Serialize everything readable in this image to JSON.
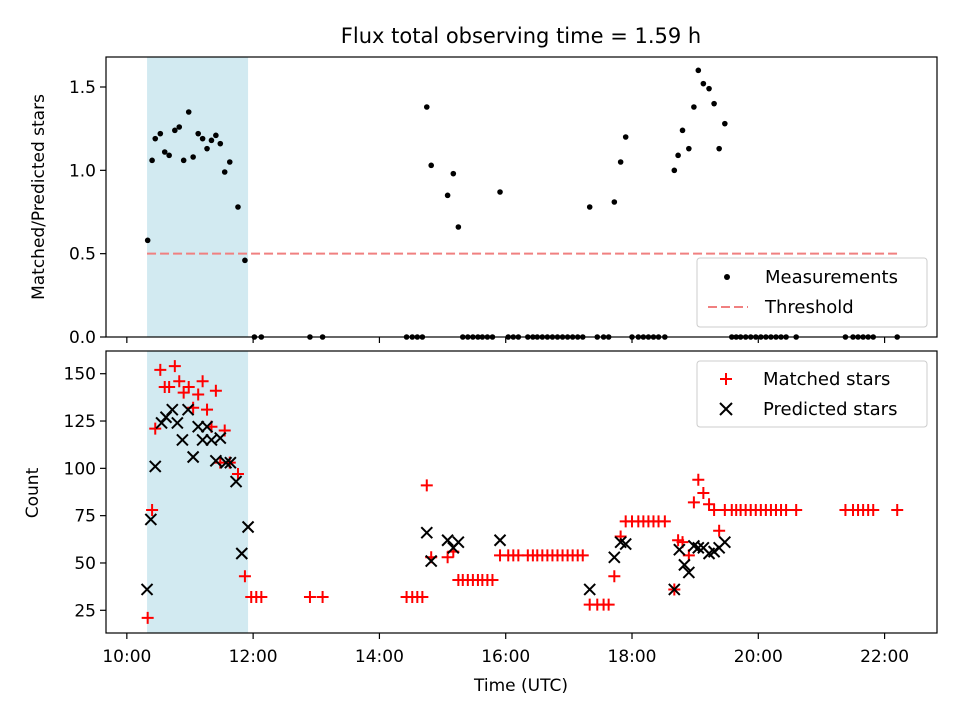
{
  "chart_data": [
    {
      "type": "scatter",
      "title": "Flux total observing time = 1.59 h",
      "xlabel": "",
      "ylabel": "Matched/Predicted stars",
      "xlim": [
        9.67,
        22.83
      ],
      "ylim": [
        0.0,
        1.68
      ],
      "xticks": [
        10,
        12,
        14,
        16,
        18,
        20,
        22
      ],
      "yticks": [
        0.0,
        0.5,
        1.0,
        1.5
      ],
      "ytick_labels": [
        "0.0",
        "0.5",
        "1.0",
        "1.5"
      ],
      "shaded_region": {
        "x": [
          10.32,
          11.92
        ],
        "color": "#add8e6"
      },
      "threshold": {
        "name": "Threshold",
        "y": 0.5,
        "x": [
          10.32,
          22.2
        ],
        "color": "#f08080"
      },
      "legend_position": "lower right",
      "series": [
        {
          "name": "Measurements",
          "color": "#000000",
          "points": [
            [
              10.33,
              0.58
            ],
            [
              10.4,
              1.06
            ],
            [
              10.45,
              1.19
            ],
            [
              10.53,
              1.22
            ],
            [
              10.6,
              1.11
            ],
            [
              10.67,
              1.09
            ],
            [
              10.76,
              1.24
            ],
            [
              10.83,
              1.26
            ],
            [
              10.9,
              1.06
            ],
            [
              10.98,
              1.35
            ],
            [
              11.05,
              1.08
            ],
            [
              11.13,
              1.22
            ],
            [
              11.2,
              1.19
            ],
            [
              11.27,
              1.13
            ],
            [
              11.34,
              1.18
            ],
            [
              11.41,
              1.21
            ],
            [
              11.48,
              1.16
            ],
            [
              11.55,
              0.99
            ],
            [
              11.63,
              1.05
            ],
            [
              11.76,
              0.78
            ],
            [
              11.87,
              0.46
            ],
            [
              12.02,
              0
            ],
            [
              12.13,
              0
            ],
            [
              12.9,
              0
            ],
            [
              13.1,
              0
            ],
            [
              14.43,
              0
            ],
            [
              14.52,
              0
            ],
            [
              14.6,
              0
            ],
            [
              14.68,
              0
            ],
            [
              14.75,
              1.38
            ],
            [
              14.82,
              1.03
            ],
            [
              15.08,
              0.85
            ],
            [
              15.17,
              0.98
            ],
            [
              15.25,
              0.66
            ],
            [
              15.32,
              0
            ],
            [
              15.4,
              0
            ],
            [
              15.48,
              0
            ],
            [
              15.56,
              0
            ],
            [
              15.63,
              0
            ],
            [
              15.71,
              0
            ],
            [
              15.79,
              0
            ],
            [
              15.91,
              0.87
            ],
            [
              16.04,
              0
            ],
            [
              16.12,
              0
            ],
            [
              16.2,
              0
            ],
            [
              16.35,
              0
            ],
            [
              16.43,
              0
            ],
            [
              16.5,
              0
            ],
            [
              16.58,
              0
            ],
            [
              16.66,
              0
            ],
            [
              16.74,
              0
            ],
            [
              16.82,
              0
            ],
            [
              16.9,
              0
            ],
            [
              16.98,
              0
            ],
            [
              17.06,
              0
            ],
            [
              17.14,
              0
            ],
            [
              17.22,
              0
            ],
            [
              17.33,
              0.78
            ],
            [
              17.45,
              0
            ],
            [
              17.55,
              0
            ],
            [
              17.63,
              0
            ],
            [
              17.72,
              0.81
            ],
            [
              17.82,
              1.05
            ],
            [
              17.9,
              1.2
            ],
            [
              18.0,
              0
            ],
            [
              18.1,
              0
            ],
            [
              18.18,
              0
            ],
            [
              18.26,
              0
            ],
            [
              18.34,
              0
            ],
            [
              18.42,
              0
            ],
            [
              18.52,
              0
            ],
            [
              18.67,
              1.0
            ],
            [
              18.73,
              1.09
            ],
            [
              18.8,
              1.24
            ],
            [
              18.9,
              1.13
            ],
            [
              18.98,
              1.38
            ],
            [
              19.05,
              1.6
            ],
            [
              19.13,
              1.52
            ],
            [
              19.22,
              1.49
            ],
            [
              19.3,
              1.4
            ],
            [
              19.38,
              1.13
            ],
            [
              19.47,
              1.28
            ],
            [
              19.58,
              0
            ],
            [
              19.65,
              0
            ],
            [
              19.72,
              0
            ],
            [
              19.8,
              0
            ],
            [
              19.88,
              0
            ],
            [
              19.96,
              0
            ],
            [
              20.04,
              0
            ],
            [
              20.12,
              0
            ],
            [
              20.2,
              0
            ],
            [
              20.28,
              0
            ],
            [
              20.36,
              0
            ],
            [
              20.44,
              0
            ],
            [
              20.6,
              0
            ],
            [
              21.38,
              0
            ],
            [
              21.5,
              0
            ],
            [
              21.58,
              0
            ],
            [
              21.66,
              0
            ],
            [
              21.74,
              0
            ],
            [
              21.82,
              0
            ],
            [
              22.2,
              0
            ]
          ]
        }
      ]
    },
    {
      "type": "scatter",
      "title": "",
      "xlabel": "Time (UTC)",
      "ylabel": "Count",
      "xlim": [
        9.67,
        22.83
      ],
      "ylim": [
        13,
        162
      ],
      "xticks": [
        10,
        12,
        14,
        16,
        18,
        20,
        22
      ],
      "xtick_labels": [
        "10:00",
        "12:00",
        "14:00",
        "16:00",
        "18:00",
        "20:00",
        "22:00"
      ],
      "yticks": [
        25,
        50,
        75,
        100,
        125,
        150
      ],
      "ytick_labels": [
        "25",
        "50",
        "75",
        "100",
        "125",
        "150"
      ],
      "shaded_region": {
        "x": [
          10.32,
          11.92
        ],
        "color": "#add8e6"
      },
      "legend_position": "upper right",
      "series": [
        {
          "name": "Matched stars",
          "color": "#ff0000",
          "marker": "+",
          "points": [
            [
              10.33,
              21
            ],
            [
              10.4,
              78
            ],
            [
              10.45,
              121
            ],
            [
              10.53,
              152
            ],
            [
              10.6,
              143
            ],
            [
              10.67,
              143
            ],
            [
              10.76,
              154
            ],
            [
              10.83,
              146
            ],
            [
              10.9,
              140
            ],
            [
              10.98,
              143
            ],
            [
              11.05,
              132
            ],
            [
              11.13,
              139
            ],
            [
              11.2,
              146
            ],
            [
              11.27,
              131
            ],
            [
              11.34,
              122
            ],
            [
              11.41,
              141
            ],
            [
              11.48,
              103
            ],
            [
              11.55,
              120
            ],
            [
              11.63,
              103
            ],
            [
              11.76,
              97
            ],
            [
              11.87,
              43
            ],
            [
              11.97,
              32
            ],
            [
              12.05,
              32
            ],
            [
              12.13,
              32
            ],
            [
              12.9,
              32
            ],
            [
              13.1,
              32
            ],
            [
              14.43,
              32
            ],
            [
              14.52,
              32
            ],
            [
              14.6,
              32
            ],
            [
              14.68,
              32
            ],
            [
              14.75,
              91
            ],
            [
              14.82,
              53
            ],
            [
              15.08,
              53
            ],
            [
              15.17,
              56
            ],
            [
              15.25,
              41
            ],
            [
              15.32,
              41
            ],
            [
              15.4,
              41
            ],
            [
              15.48,
              41
            ],
            [
              15.56,
              41
            ],
            [
              15.63,
              41
            ],
            [
              15.71,
              41
            ],
            [
              15.79,
              41
            ],
            [
              15.91,
              54
            ],
            [
              16.04,
              54
            ],
            [
              16.12,
              54
            ],
            [
              16.2,
              54
            ],
            [
              16.35,
              54
            ],
            [
              16.43,
              54
            ],
            [
              16.5,
              54
            ],
            [
              16.58,
              54
            ],
            [
              16.66,
              54
            ],
            [
              16.74,
              54
            ],
            [
              16.82,
              54
            ],
            [
              16.9,
              54
            ],
            [
              16.98,
              54
            ],
            [
              17.06,
              54
            ],
            [
              17.14,
              54
            ],
            [
              17.22,
              54
            ],
            [
              17.33,
              28
            ],
            [
              17.45,
              28
            ],
            [
              17.55,
              28
            ],
            [
              17.63,
              28
            ],
            [
              17.72,
              43
            ],
            [
              17.82,
              64
            ],
            [
              17.9,
              72
            ],
            [
              18.0,
              72
            ],
            [
              18.1,
              72
            ],
            [
              18.18,
              72
            ],
            [
              18.26,
              72
            ],
            [
              18.34,
              72
            ],
            [
              18.42,
              72
            ],
            [
              18.52,
              72
            ],
            [
              18.67,
              36
            ],
            [
              18.73,
              62
            ],
            [
              18.8,
              61
            ],
            [
              18.9,
              54
            ],
            [
              18.98,
              82
            ],
            [
              19.05,
              94
            ],
            [
              19.13,
              87
            ],
            [
              19.22,
              81
            ],
            [
              19.3,
              78
            ],
            [
              19.38,
              67
            ],
            [
              19.47,
              78
            ],
            [
              19.58,
              78
            ],
            [
              19.65,
              78
            ],
            [
              19.72,
              78
            ],
            [
              19.8,
              78
            ],
            [
              19.88,
              78
            ],
            [
              19.96,
              78
            ],
            [
              20.04,
              78
            ],
            [
              20.12,
              78
            ],
            [
              20.2,
              78
            ],
            [
              20.28,
              78
            ],
            [
              20.36,
              78
            ],
            [
              20.44,
              78
            ],
            [
              20.6,
              78
            ],
            [
              21.38,
              78
            ],
            [
              21.5,
              78
            ],
            [
              21.58,
              78
            ],
            [
              21.66,
              78
            ],
            [
              21.74,
              78
            ],
            [
              21.82,
              78
            ],
            [
              22.2,
              78
            ]
          ]
        },
        {
          "name": "Predicted stars",
          "color": "#000000",
          "marker": "x",
          "points": [
            [
              10.32,
              36
            ],
            [
              10.38,
              73
            ],
            [
              10.45,
              101
            ],
            [
              10.55,
              124
            ],
            [
              10.62,
              127
            ],
            [
              10.72,
              131
            ],
            [
              10.8,
              124
            ],
            [
              10.88,
              115
            ],
            [
              10.97,
              131
            ],
            [
              11.05,
              106
            ],
            [
              11.13,
              122
            ],
            [
              11.2,
              115
            ],
            [
              11.27,
              122
            ],
            [
              11.34,
              115
            ],
            [
              11.41,
              104
            ],
            [
              11.48,
              116
            ],
            [
              11.57,
              103
            ],
            [
              11.64,
              103
            ],
            [
              11.73,
              93
            ],
            [
              11.82,
              55
            ],
            [
              11.92,
              69
            ],
            [
              14.75,
              66
            ],
            [
              14.82,
              51
            ],
            [
              15.08,
              62
            ],
            [
              15.17,
              58
            ],
            [
              15.25,
              61
            ],
            [
              15.91,
              62
            ],
            [
              17.33,
              36
            ],
            [
              17.72,
              53
            ],
            [
              17.82,
              61
            ],
            [
              17.9,
              60
            ],
            [
              18.67,
              36
            ],
            [
              18.75,
              57
            ],
            [
              18.83,
              49
            ],
            [
              18.9,
              45
            ],
            [
              18.98,
              59
            ],
            [
              19.05,
              58
            ],
            [
              19.13,
              58
            ],
            [
              19.22,
              55
            ],
            [
              19.3,
              56
            ],
            [
              19.38,
              58
            ],
            [
              19.47,
              61
            ]
          ]
        }
      ]
    }
  ]
}
